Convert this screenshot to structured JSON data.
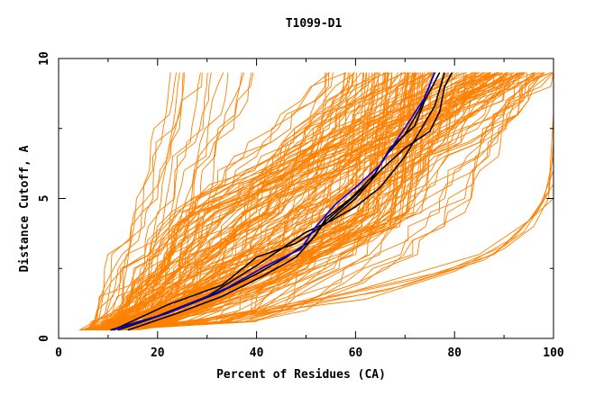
{
  "chart_data": {
    "type": "line",
    "title": "T1099-D1",
    "xlabel": "Percent of Residues (CA)",
    "ylabel": "Distance Cutoff, A",
    "xlim": [
      0,
      100
    ],
    "ylim": [
      0,
      10
    ],
    "x_ticks": [
      "0",
      "20",
      "40",
      "60",
      "80",
      "100"
    ],
    "y_ticks": [
      "0",
      "5",
      "10"
    ],
    "grid": false,
    "legend": "none",
    "colors": {
      "models": "#ff8000",
      "highlight_black": "#000000",
      "highlight_blue": "#0000ff"
    },
    "model_count": 180,
    "highlighted_series": [
      {
        "color": "#000000",
        "points": [
          [
            10.5,
            0.3
          ],
          [
            20,
            0.8
          ],
          [
            30,
            1.5
          ],
          [
            40,
            2.6
          ],
          [
            50,
            3.8
          ],
          [
            55,
            4.2
          ],
          [
            60,
            4.7
          ],
          [
            65,
            5.4
          ],
          [
            70,
            6.5
          ],
          [
            73,
            7.4
          ],
          [
            76,
            8.3
          ],
          [
            78,
            9.5
          ]
        ]
      },
      {
        "color": "#000000",
        "points": [
          [
            12,
            0.3
          ],
          [
            22,
            0.9
          ],
          [
            32,
            1.6
          ],
          [
            40,
            2.3
          ],
          [
            46,
            2.9
          ],
          [
            51,
            3.5
          ],
          [
            54,
            4.2
          ],
          [
            58,
            4.8
          ],
          [
            63,
            5.6
          ],
          [
            66,
            6.5
          ],
          [
            70,
            7.3
          ],
          [
            73,
            8.2
          ],
          [
            76,
            9.5
          ]
        ]
      },
      {
        "color": "#000000",
        "points": [
          [
            14,
            0.3
          ],
          [
            24,
            0.9
          ],
          [
            33,
            1.5
          ],
          [
            41,
            2.2
          ],
          [
            48,
            2.9
          ],
          [
            52,
            3.7
          ],
          [
            54,
            4.3
          ],
          [
            59,
            5.0
          ],
          [
            64,
            5.9
          ],
          [
            67,
            6.8
          ],
          [
            72,
            7.6
          ],
          [
            74,
            8.5
          ],
          [
            77,
            9.5
          ]
        ]
      },
      {
        "color": "#000000",
        "points": [
          [
            11,
            0.3
          ],
          [
            22,
            1.2
          ],
          [
            33,
            1.9
          ],
          [
            40,
            2.9
          ],
          [
            48,
            3.4
          ],
          [
            54,
            4.1
          ],
          [
            60,
            5.0
          ],
          [
            65,
            6.0
          ],
          [
            70,
            6.8
          ],
          [
            75,
            7.4
          ],
          [
            77,
            8.1
          ],
          [
            78,
            9.0
          ],
          [
            79.5,
            9.5
          ]
        ]
      },
      {
        "color": "#0000ff",
        "points": [
          [
            11,
            0.3
          ],
          [
            22,
            0.9
          ],
          [
            34,
            1.8
          ],
          [
            42,
            2.6
          ],
          [
            49,
            3.2
          ],
          [
            52,
            4.0
          ],
          [
            56,
            4.8
          ],
          [
            60,
            5.4
          ],
          [
            65,
            6.2
          ],
          [
            68,
            7.0
          ],
          [
            71,
            7.8
          ],
          [
            74,
            8.6
          ],
          [
            76,
            9.5
          ]
        ]
      }
    ]
  }
}
